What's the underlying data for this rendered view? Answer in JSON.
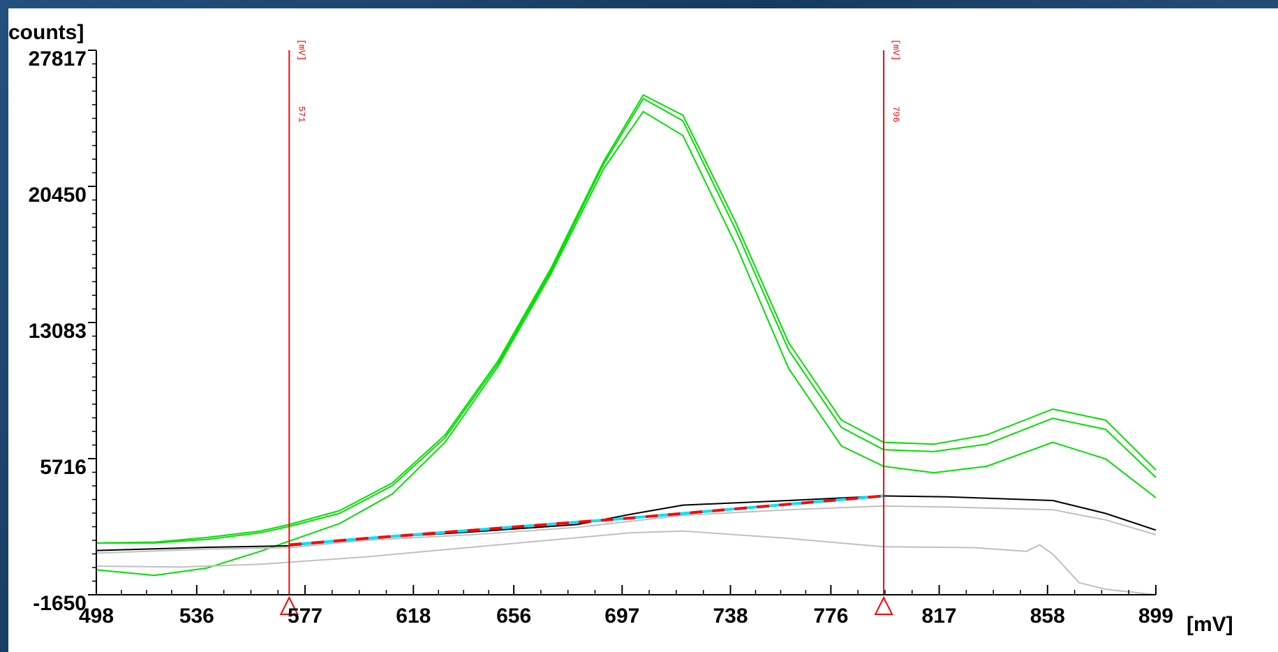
{
  "chart_data": {
    "type": "line",
    "xlabel": "[mV]",
    "ylabel": "counts]",
    "xlim": [
      498,
      899
    ],
    "ylim": [
      -1650,
      27817
    ],
    "x_tick_labels": [
      "498",
      "536",
      "577",
      "618",
      "656",
      "697",
      "738",
      "776",
      "817",
      "858",
      "899"
    ],
    "x_tick_values": [
      498,
      536,
      577,
      618,
      656,
      697,
      738,
      776,
      817,
      858,
      899
    ],
    "y_tick_labels": [
      "27817",
      "20450",
      "13083",
      "5716",
      "-1650"
    ],
    "y_tick_values": [
      27817,
      20450,
      13083,
      5716,
      -1650
    ],
    "markers": [
      {
        "x": 571,
        "value_label": "571",
        "unit_label": "[mV]",
        "color": "#ff0000"
      },
      {
        "x": 796,
        "value_label": "796",
        "unit_label": "[mV]",
        "color": "#ff0000"
      }
    ],
    "series": [
      {
        "color": "#00e000",
        "x": [
          498,
          520,
          540,
          560,
          571,
          590,
          610,
          630,
          650,
          670,
          690,
          705,
          720,
          740,
          760,
          780,
          796,
          815,
          835,
          860,
          880,
          899
        ],
        "y": [
          1150,
          1200,
          1450,
          1800,
          2150,
          2900,
          4400,
          7000,
          11000,
          16000,
          21800,
          25400,
          24300,
          18500,
          12000,
          7800,
          6600,
          6500,
          7000,
          8400,
          7800,
          5100
        ]
      },
      {
        "color": "#00e000",
        "x": [
          498,
          520,
          540,
          560,
          571,
          590,
          610,
          630,
          650,
          670,
          690,
          705,
          720,
          740,
          760,
          780,
          796,
          815,
          835,
          860,
          880,
          899
        ],
        "y": [
          1150,
          1150,
          1350,
          1700,
          2050,
          2750,
          4250,
          6850,
          10850,
          15850,
          21650,
          25200,
          24000,
          18100,
          11600,
          7400,
          6200,
          6100,
          6500,
          7900,
          7300,
          4700
        ]
      },
      {
        "color": "#00e000",
        "x": [
          498,
          520,
          540,
          560,
          571,
          590,
          610,
          630,
          650,
          670,
          690,
          705,
          720,
          740,
          760,
          780,
          796,
          815,
          835,
          860,
          880,
          899
        ],
        "y": [
          -300,
          -600,
          -200,
          700,
          1250,
          2200,
          3800,
          6600,
          10700,
          15700,
          21400,
          24500,
          23200,
          17300,
          10600,
          6400,
          5300,
          4950,
          5300,
          6600,
          5700,
          3600
        ]
      },
      {
        "color": "#000000",
        "x": [
          498,
          540,
          571,
          600,
          640,
          680,
          700,
          720,
          760,
          796,
          820,
          860,
          880,
          899
        ],
        "y": [
          745,
          920,
          1000,
          1400,
          1750,
          2150,
          2700,
          3200,
          3450,
          3700,
          3650,
          3450,
          2750,
          1850
        ]
      },
      {
        "color": "#c0c0c0",
        "x": [
          498,
          540,
          571,
          600,
          640,
          680,
          720,
          760,
          796,
          820,
          860,
          880,
          899
        ],
        "y": [
          600,
          820,
          900,
          1300,
          1600,
          2000,
          2650,
          2950,
          3150,
          3100,
          2950,
          2400,
          1600
        ]
      },
      {
        "color": "#c0c0c0",
        "x": [
          498,
          530,
          560,
          600,
          650,
          700,
          720,
          760,
          796,
          830,
          850,
          855,
          860,
          870,
          880,
          899
        ],
        "y": [
          -100,
          -150,
          0,
          400,
          1050,
          1700,
          1800,
          1400,
          950,
          900,
          700,
          1050,
          550,
          -1000,
          -1350,
          -1650
        ]
      },
      {
        "color": "#ff0000",
        "x": [
          571,
          600,
          650,
          700,
          796
        ],
        "y": [
          1050,
          1400,
          1950,
          2500,
          3700
        ],
        "dash": true
      },
      {
        "color": "#00e0ff",
        "x": [
          571,
          600,
          650,
          700,
          796
        ],
        "y": [
          1050,
          1400,
          1950,
          2500,
          3700
        ],
        "dash_offset": true
      }
    ]
  }
}
